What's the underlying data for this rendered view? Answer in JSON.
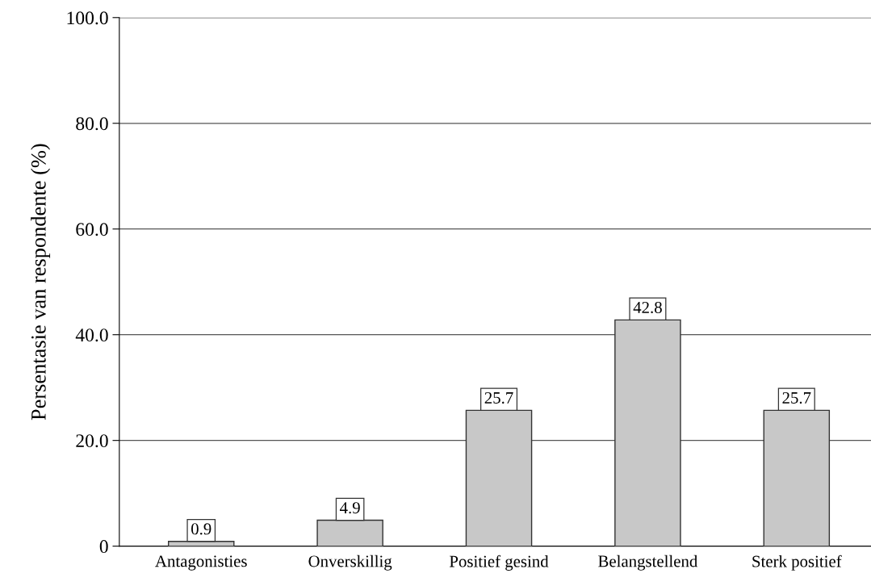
{
  "chart_data": {
    "type": "bar",
    "ylabel": "Persentasie van respondente (%)",
    "categories": [
      "Antagonisties",
      "Onverskillig",
      "Positief gesind",
      "Belangstellend",
      "Sterk positief"
    ],
    "values": [
      0.9,
      4.9,
      25.7,
      42.8,
      25.7
    ],
    "color": "#c8c8c8",
    "ylim": [
      0,
      100
    ],
    "yticks": [
      {
        "value": 0,
        "label": "0"
      },
      {
        "value": 20,
        "label": "20.0"
      },
      {
        "value": 40,
        "label": "40.0"
      },
      {
        "value": 60,
        "label": "60.0"
      },
      {
        "value": 80,
        "label": "80.0"
      },
      {
        "value": 100,
        "label": "100.0"
      }
    ],
    "grid": "y",
    "data_labels": true
  }
}
